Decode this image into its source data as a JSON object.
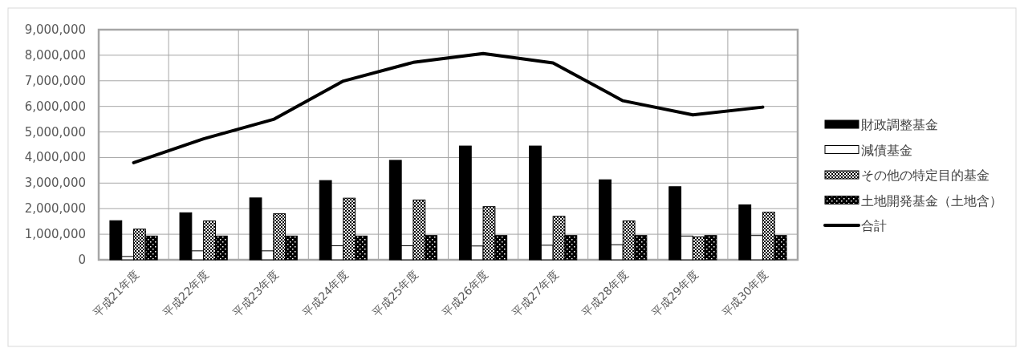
{
  "chart_data": {
    "type": "bar",
    "categories": [
      "平成21年度",
      "平成22年度",
      "平成23年度",
      "平成24年度",
      "平成25年度",
      "平成26年度",
      "平成27年度",
      "平成28年度",
      "平成29年度",
      "平成30年度"
    ],
    "series": [
      {
        "name": "財政調整基金",
        "color": "#000000",
        "values": [
          1530000,
          1840000,
          2420000,
          3100000,
          3890000,
          4450000,
          4450000,
          3130000,
          2860000,
          2150000
        ]
      },
      {
        "name": "減債基金",
        "color": "#ffffff",
        "values": [
          130000,
          350000,
          350000,
          550000,
          550000,
          540000,
          570000,
          590000,
          930000,
          950000
        ]
      },
      {
        "name": "その他の特定目的基金",
        "color": "#000000",
        "values": [
          1200000,
          1520000,
          1800000,
          2410000,
          2340000,
          2080000,
          1700000,
          1520000,
          900000,
          1860000
        ]
      },
      {
        "name": "土地開発基金（土地含）",
        "color": "#000000",
        "values": [
          930000,
          930000,
          930000,
          930000,
          950000,
          950000,
          950000,
          950000,
          950000,
          950000
        ]
      },
      {
        "name": "合計",
        "type": "line",
        "color": "#000000",
        "values": [
          3800000,
          4730000,
          5490000,
          6990000,
          7720000,
          8070000,
          7700000,
          6220000,
          5670000,
          5970000
        ]
      }
    ],
    "ylim": [
      0,
      9000000
    ],
    "yticks": [
      {
        "value": 0,
        "label": "0"
      },
      {
        "value": 1000000,
        "label": "1,000,000"
      },
      {
        "value": 2000000,
        "label": "2,000,000"
      },
      {
        "value": 3000000,
        "label": "3,000,000"
      },
      {
        "value": 4000000,
        "label": "4,000,000"
      },
      {
        "value": 5000000,
        "label": "5,000,000"
      },
      {
        "value": 6000000,
        "label": "6,000,000"
      },
      {
        "value": 7000000,
        "label": "7,000,000"
      },
      {
        "value": 8000000,
        "label": "8,000,000"
      },
      {
        "value": 9000000,
        "label": "9,000,000"
      }
    ],
    "grid": true,
    "legend": "right"
  }
}
